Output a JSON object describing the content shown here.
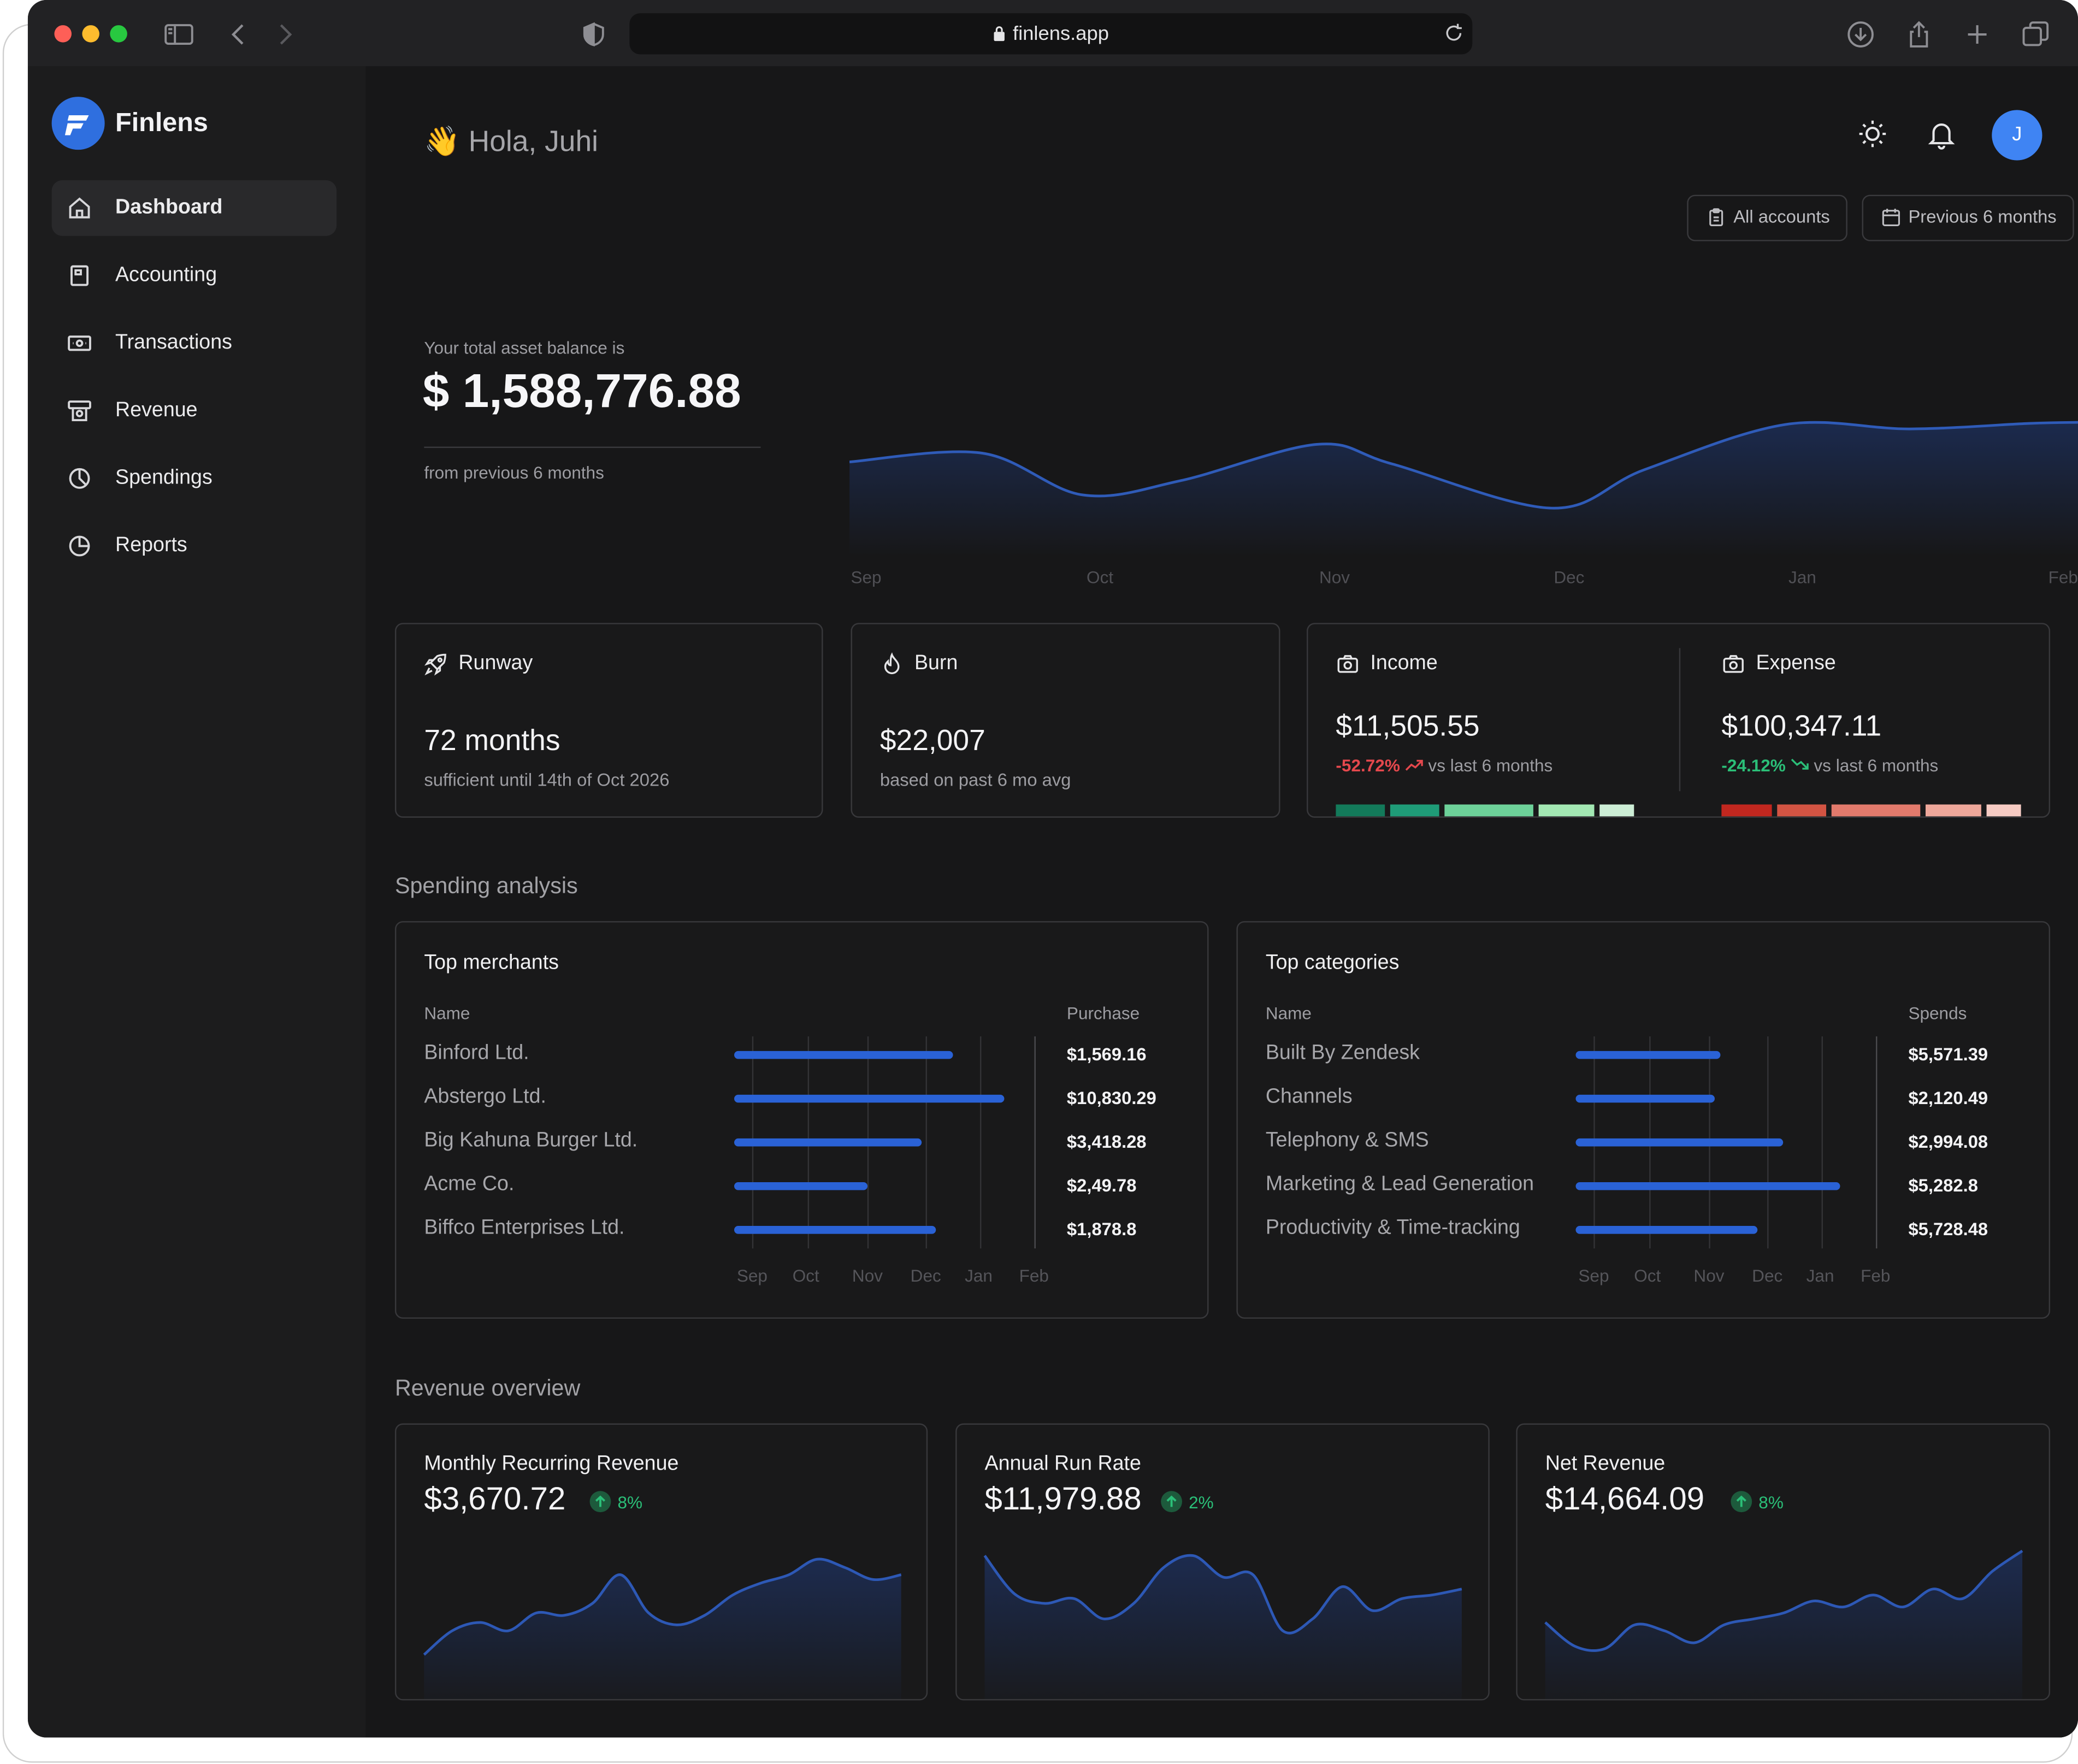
{
  "browser": {
    "url": "finlens.app"
  },
  "app": {
    "name": "Finlens"
  },
  "sidebar": {
    "items": [
      {
        "label": "Dashboard",
        "icon": "home-icon",
        "active": true
      },
      {
        "label": "Accounting",
        "icon": "ledger-icon"
      },
      {
        "label": "Transactions",
        "icon": "banknote-icon"
      },
      {
        "label": "Revenue",
        "icon": "register-icon"
      },
      {
        "label": "Spendings",
        "icon": "pie-chart-icon"
      },
      {
        "label": "Reports",
        "icon": "pie-chart-icon"
      }
    ]
  },
  "header": {
    "greeting_emoji": "👋",
    "greeting": "Hola, Juhi",
    "avatar_initial": "J",
    "filters": {
      "accounts": "All accounts",
      "period": "Previous 6 months"
    }
  },
  "balance": {
    "label": "Your total asset balance is",
    "value": "$ 1,588,776.88",
    "sub": "from previous 6 months"
  },
  "chart_data": [
    {
      "type": "area",
      "x": [
        "Sep",
        "Oct",
        "Nov",
        "Dec",
        "Jan",
        "Feb"
      ],
      "values": [
        0.62,
        0.32,
        0.78,
        0.2,
        0.96,
        0.97
      ],
      "color": "#2f5bb8"
    },
    {
      "type": "bar",
      "title": "Top merchants",
      "categories": [
        "Binford Ltd.",
        "Abstergo Ltd.",
        "Big Kahuna Burger Ltd.",
        "Acme Co.",
        "Biffco Enterprises Ltd."
      ],
      "values": [
        0.74,
        0.92,
        0.63,
        0.44,
        0.68
      ],
      "x_ticks": [
        "Sep",
        "Oct",
        "Nov",
        "Dec",
        "Jan",
        "Feb"
      ]
    },
    {
      "type": "bar",
      "title": "Top categories",
      "categories": [
        "Built By Zendesk",
        "Channels",
        "Telephony & SMS",
        "Marketing & Lead Generation",
        "Productivity & Time-tracking"
      ],
      "values": [
        0.48,
        0.46,
        0.7,
        0.9,
        0.61
      ],
      "x_ticks": [
        "Sep",
        "Oct",
        "Nov",
        "Dec",
        "Jan",
        "Feb"
      ]
    },
    {
      "type": "area",
      "title": "Monthly Recurring Revenue",
      "values": [
        0.05,
        0.25,
        0.32,
        0.25,
        0.4,
        0.38,
        0.48,
        0.72,
        0.4,
        0.3,
        0.38,
        0.55,
        0.65,
        0.72,
        0.85,
        0.78,
        0.68,
        0.72
      ]
    },
    {
      "type": "area",
      "title": "Annual Run Rate",
      "values": [
        0.88,
        0.56,
        0.48,
        0.52,
        0.35,
        0.48,
        0.78,
        0.88,
        0.7,
        0.72,
        0.25,
        0.35,
        0.62,
        0.42,
        0.52,
        0.55,
        0.6
      ]
    },
    {
      "type": "area",
      "title": "Net Revenue",
      "values": [
        0.32,
        0.12,
        0.1,
        0.3,
        0.25,
        0.15,
        0.3,
        0.35,
        0.4,
        0.5,
        0.45,
        0.55,
        0.45,
        0.6,
        0.52,
        0.75,
        0.92
      ]
    }
  ],
  "kpis": {
    "runway": {
      "title": "Runway",
      "value": "72 months",
      "sub": "sufficient until 14th of Oct 2026"
    },
    "burn": {
      "title": "Burn",
      "value": "$22,007",
      "sub": "based on past 6 mo avg"
    },
    "income": {
      "title": "Income",
      "value": "$11,505.55",
      "change": "-52.72%",
      "compare": "vs last 6 months",
      "segments": [
        "#137a5a",
        "#1f9c78",
        "#6dd199",
        "#a3e8b3",
        "#cdeed6"
      ]
    },
    "expense": {
      "title": "Expense",
      "value": "$100,347.11",
      "change": "-24.12%",
      "compare": "vs last 6 months",
      "segments": [
        "#c1271f",
        "#d35443",
        "#e27a6c",
        "#eea79a",
        "#f6cbc3"
      ]
    }
  },
  "spending": {
    "section_title": "Spending analysis",
    "merchants": {
      "title": "Top merchants",
      "col_name": "Name",
      "col_value": "Purchase",
      "rows": [
        {
          "name": "Binford Ltd.",
          "value": "$1,569.16"
        },
        {
          "name": "Abstergo Ltd.",
          "value": "$10,830.29"
        },
        {
          "name": "Big Kahuna Burger Ltd.",
          "value": "$3,418.28"
        },
        {
          "name": "Acme Co.",
          "value": "$2,49.78"
        },
        {
          "name": "Biffco Enterprises Ltd.",
          "value": "$1,878.8"
        }
      ]
    },
    "categories": {
      "title": "Top categories",
      "col_name": "Name",
      "col_value": "Spends",
      "rows": [
        {
          "name": "Built By Zendesk",
          "value": "$5,571.39"
        },
        {
          "name": "Channels",
          "value": "$2,120.49"
        },
        {
          "name": "Telephony & SMS",
          "value": "$2,994.08"
        },
        {
          "name": "Marketing & Lead Generation",
          "value": "$5,282.8"
        },
        {
          "name": "Productivity & Time-tracking",
          "value": "$5,728.48"
        }
      ]
    }
  },
  "revenue": {
    "section_title": "Revenue overview",
    "cards": [
      {
        "title": "Monthly Recurring Revenue",
        "value": "$3,670.72",
        "change": "8%"
      },
      {
        "title": "Annual Run Rate",
        "value": "$11,979.88",
        "change": "2%"
      },
      {
        "title": "Net Revenue",
        "value": "$14,664.09",
        "change": "8%"
      }
    ]
  },
  "colors": {
    "accent": "#2f6fdf",
    "bar_blue": "#2a62d6",
    "negative": "#e5484d",
    "positive": "#2bbf78"
  }
}
